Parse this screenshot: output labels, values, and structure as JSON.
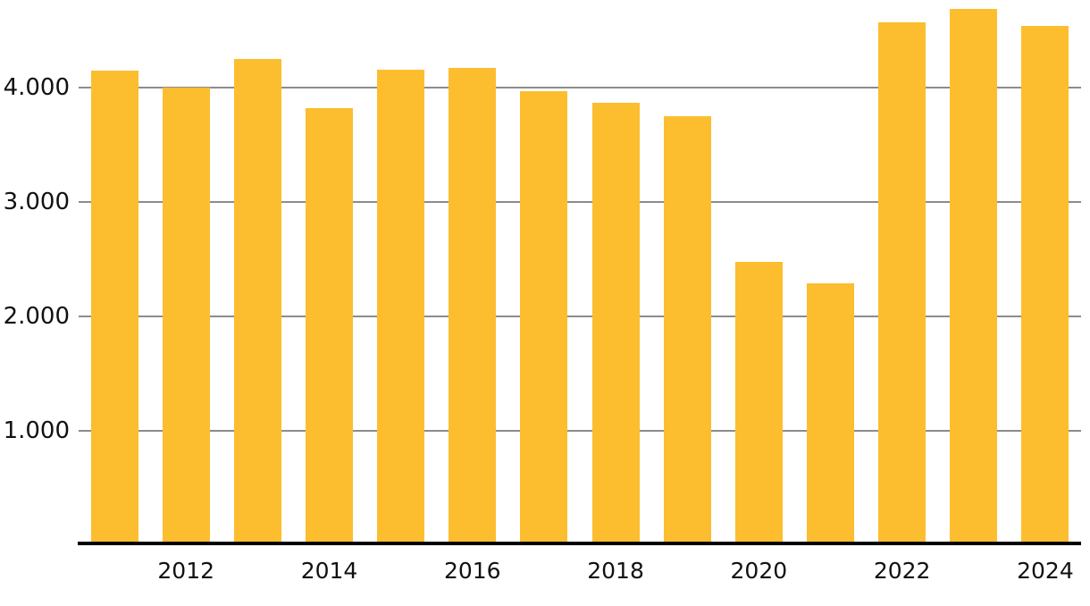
{
  "chart_data": {
    "type": "bar",
    "title": "",
    "xlabel": "",
    "ylabel": "",
    "categories": [
      "2011",
      "2012",
      "2013",
      "2014",
      "2015",
      "2016",
      "2017",
      "2018",
      "2019",
      "2020",
      "2021",
      "2022",
      "2023",
      "2024"
    ],
    "values": [
      4150,
      4000,
      4250,
      3820,
      4160,
      4170,
      3970,
      3870,
      3750,
      2480,
      2290,
      4570,
      4690,
      4540
    ],
    "y_ticks": [
      {
        "value": 1000,
        "label": "1.000"
      },
      {
        "value": 2000,
        "label": "2.000"
      },
      {
        "value": 3000,
        "label": "3.000"
      },
      {
        "value": 4000,
        "label": "4.000"
      }
    ],
    "x_tick_labels": [
      "2012",
      "2014",
      "2016",
      "2018",
      "2020",
      "2022",
      "2024"
    ],
    "ylim": [
      0,
      4766
    ],
    "grid": true,
    "legend": "none",
    "colors": {
      "bar": "#FCBE2F",
      "gridline": "#8C8C8C",
      "axis_line": "#000000",
      "tick_text": "#111111",
      "background": "#FFFFFF"
    }
  }
}
